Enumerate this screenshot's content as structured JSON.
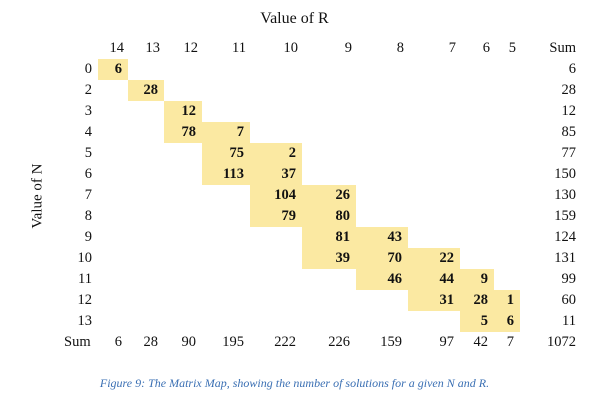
{
  "title": "Value of R",
  "y_label": "Value of N",
  "columns": [
    "14",
    "13",
    "12",
    "11",
    "10",
    "9",
    "8",
    "7",
    "6",
    "5"
  ],
  "sum_label": "Sum",
  "rows": [
    {
      "n": "0",
      "cells": [
        "6",
        "",
        "",
        "",
        "",
        "",
        "",
        "",
        "",
        ""
      ],
      "sum": "6"
    },
    {
      "n": "2",
      "cells": [
        "",
        "28",
        "",
        "",
        "",
        "",
        "",
        "",
        "",
        ""
      ],
      "sum": "28"
    },
    {
      "n": "3",
      "cells": [
        "",
        "",
        "12",
        "",
        "",
        "",
        "",
        "",
        "",
        ""
      ],
      "sum": "12"
    },
    {
      "n": "4",
      "cells": [
        "",
        "",
        "78",
        "7",
        "",
        "",
        "",
        "",
        "",
        ""
      ],
      "sum": "85"
    },
    {
      "n": "5",
      "cells": [
        "",
        "",
        "",
        "75",
        "2",
        "",
        "",
        "",
        "",
        ""
      ],
      "sum": "77"
    },
    {
      "n": "6",
      "cells": [
        "",
        "",
        "",
        "113",
        "37",
        "",
        "",
        "",
        "",
        ""
      ],
      "sum": "150"
    },
    {
      "n": "7",
      "cells": [
        "",
        "",
        "",
        "",
        "104",
        "26",
        "",
        "",
        "",
        ""
      ],
      "sum": "130"
    },
    {
      "n": "8",
      "cells": [
        "",
        "",
        "",
        "",
        "79",
        "80",
        "",
        "",
        "",
        ""
      ],
      "sum": "159"
    },
    {
      "n": "9",
      "cells": [
        "",
        "",
        "",
        "",
        "",
        "81",
        "43",
        "",
        "",
        ""
      ],
      "sum": "124"
    },
    {
      "n": "10",
      "cells": [
        "",
        "",
        "",
        "",
        "",
        "39",
        "70",
        "22",
        "",
        ""
      ],
      "sum": "131"
    },
    {
      "n": "11",
      "cells": [
        "",
        "",
        "",
        "",
        "",
        "",
        "46",
        "44",
        "9",
        ""
      ],
      "sum": "99"
    },
    {
      "n": "12",
      "cells": [
        "",
        "",
        "",
        "",
        "",
        "",
        "",
        "31",
        "28",
        "1"
      ],
      "sum": "60"
    },
    {
      "n": "13",
      "cells": [
        "",
        "",
        "",
        "",
        "",
        "",
        "",
        "",
        "5",
        "6"
      ],
      "sum": "11"
    }
  ],
  "sum_row": [
    "6",
    "28",
    "90",
    "195",
    "222",
    "226",
    "159",
    "97",
    "42",
    "7"
  ],
  "grand_total": "1072",
  "highlight_color": "#fbe9a2",
  "caption": "Figure 9: The Matrix Map, showing the number of solutions for a given N and R."
}
